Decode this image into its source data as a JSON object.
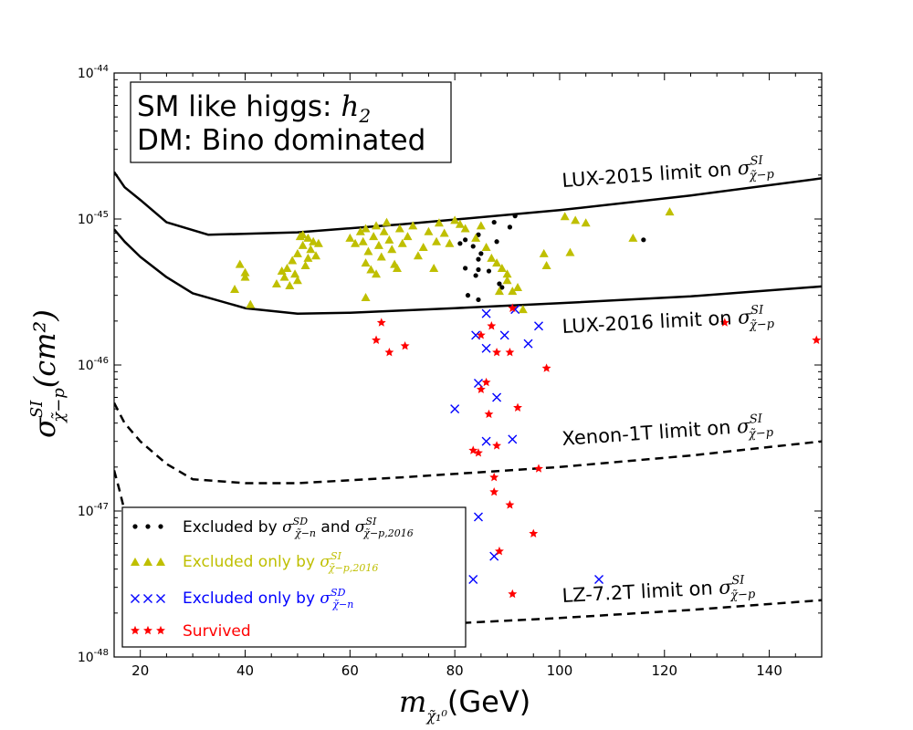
{
  "chart_data": {
    "type": "scatter",
    "xlabel_main": "m",
    "xlabel_sub": "χ̃₁⁰",
    "xlabel_unit": "(GeV)",
    "ylabel_main": "σ",
    "ylabel_sup": "SI",
    "ylabel_sub": "χ̃−p",
    "ylabel_unit": "(cm²)",
    "xlim": [
      15,
      150
    ],
    "ylim": [
      1e-48,
      1e-44
    ],
    "yscale": "log",
    "xticks": [
      "20",
      "40",
      "60",
      "80",
      "100",
      "120",
      "140"
    ],
    "yticks": [
      {
        "base": "10",
        "exp": "-44"
      },
      {
        "base": "10",
        "exp": "-45"
      },
      {
        "base": "10",
        "exp": "-46"
      },
      {
        "base": "10",
        "exp": "-47"
      },
      {
        "base": "10",
        "exp": "-48"
      }
    ],
    "textbox": {
      "line1_text": "SM like higgs: ",
      "line1_math": "h",
      "line1_math_sub": "2",
      "line2": "DM: Bino dominated"
    },
    "limit_curves": [
      {
        "label_text": "LUX-2015 limit on ",
        "label_math": "σ",
        "label_sup": "SI",
        "label_sub": "χ̃−p",
        "style": "solid",
        "points": [
          [
            15,
            2.1e-45
          ],
          [
            17,
            1.65e-45
          ],
          [
            20,
            1.35e-45
          ],
          [
            25,
            9.5e-46
          ],
          [
            33,
            7.8e-46
          ],
          [
            50,
            8.1e-46
          ],
          [
            70,
            9.2e-46
          ],
          [
            100,
            1.15e-45
          ],
          [
            125,
            1.45e-45
          ],
          [
            150,
            1.9e-45
          ]
        ]
      },
      {
        "label_text": "LUX-2016 limit on ",
        "label_math": "σ",
        "label_sup": "SI",
        "label_sub": "χ̃−p",
        "style": "solid",
        "points": [
          [
            15,
            8.5e-46
          ],
          [
            17,
            7e-46
          ],
          [
            20,
            5.5e-46
          ],
          [
            25,
            4e-46
          ],
          [
            30,
            3.1e-46
          ],
          [
            40,
            2.45e-46
          ],
          [
            50,
            2.25e-46
          ],
          [
            60,
            2.28e-46
          ],
          [
            80,
            2.45e-46
          ],
          [
            100,
            2.65e-46
          ],
          [
            125,
            2.95e-46
          ],
          [
            150,
            3.45e-46
          ]
        ]
      },
      {
        "label_text": "Xenon-1T limit on ",
        "label_math": "σ",
        "label_sup": "SI",
        "label_sub": "χ̃−p",
        "style": "dashed",
        "points": [
          [
            15,
            5.5e-47
          ],
          [
            17,
            4e-47
          ],
          [
            20,
            3e-47
          ],
          [
            25,
            2.1e-47
          ],
          [
            30,
            1.65e-47
          ],
          [
            40,
            1.55e-47
          ],
          [
            50,
            1.55e-47
          ],
          [
            70,
            1.7e-47
          ],
          [
            100,
            2e-47
          ],
          [
            125,
            2.4e-47
          ],
          [
            150,
            3e-47
          ]
        ]
      },
      {
        "label_text": "LZ-7.2T limit on ",
        "label_math": "σ",
        "label_sup": "SI",
        "label_sub": "χ̃−p",
        "style": "dashed",
        "points": [
          [
            15,
            1.9e-47
          ],
          [
            16,
            1.4e-47
          ],
          [
            17,
            1e-47
          ],
          [
            19,
            6e-48
          ],
          [
            21,
            3.8e-48
          ],
          [
            23,
            2.6e-48
          ],
          [
            26,
            1.9e-48
          ],
          [
            30,
            1.65e-48
          ],
          [
            40,
            1.55e-48
          ],
          [
            60,
            1.6e-48
          ],
          [
            80,
            1.7e-48
          ],
          [
            100,
            1.85e-48
          ],
          [
            125,
            2.1e-48
          ],
          [
            150,
            2.45e-48
          ]
        ]
      }
    ],
    "legend": {
      "placement": "lower-left",
      "entries": [
        {
          "text": "Excluded by ",
          "math1": "σ",
          "sup1": "SD",
          "sub1": "χ̃−n",
          "joiner": " and ",
          "math2": "σ",
          "sup2": "SI",
          "sub2": "χ̃−p,2016",
          "color": "#000000",
          "marker": "dot"
        },
        {
          "text": "Excluded only by ",
          "math1": "σ",
          "sup1": "SI",
          "sub1": "χ̃−p,2016",
          "color": "#bfbf00",
          "marker": "triangle"
        },
        {
          "text": "Excluded only by ",
          "math1": "σ",
          "sup1": "SD",
          "sub1": "χ̃−n",
          "color": "#0000ff",
          "marker": "x"
        },
        {
          "text": "Survived",
          "color": "#ff0000",
          "marker": "star"
        }
      ]
    },
    "series": [
      {
        "marker": "dot",
        "color": "#000000",
        "points": [
          [
            81,
            6.8e-46
          ],
          [
            82,
            7.2e-46
          ],
          [
            83.5,
            6.5e-46
          ],
          [
            84.5,
            7.8e-46
          ],
          [
            85,
            5.8e-46
          ],
          [
            84.5,
            5.3e-46
          ],
          [
            87.5,
            9.5e-46
          ],
          [
            88,
            7e-46
          ],
          [
            90.5,
            8.8e-46
          ],
          [
            91.5,
            1.05e-45
          ],
          [
            116,
            7.2e-46
          ],
          [
            82,
            4.6e-46
          ],
          [
            84.5,
            4.5e-46
          ],
          [
            84,
            4.1e-46
          ],
          [
            86.5,
            4.4e-46
          ],
          [
            88.5,
            3.6e-46
          ],
          [
            89,
            3.4e-46
          ],
          [
            82.5,
            3e-46
          ],
          [
            84.5,
            2.8e-46
          ]
        ]
      },
      {
        "marker": "triangle",
        "color": "#bfbf00",
        "points": [
          [
            38,
            3.3e-46
          ],
          [
            39,
            4.9e-46
          ],
          [
            40,
            4.3e-46
          ],
          [
            40,
            4e-46
          ],
          [
            41,
            2.6e-46
          ],
          [
            46,
            3.6e-46
          ],
          [
            47,
            4.4e-46
          ],
          [
            47.5,
            4e-46
          ],
          [
            48,
            4.6e-46
          ],
          [
            48.5,
            3.5e-46
          ],
          [
            49,
            5.2e-46
          ],
          [
            50,
            3.8e-46
          ],
          [
            50,
            5.8e-46
          ],
          [
            50.5,
            7.6e-46
          ],
          [
            51,
            6.6e-46
          ],
          [
            51.5,
            4.8e-46
          ],
          [
            52,
            7.4e-46
          ],
          [
            52.5,
            6.2e-46
          ],
          [
            53,
            7e-46
          ],
          [
            53.5,
            5.6e-46
          ],
          [
            54,
            6.8e-46
          ],
          [
            51,
            7.8e-46
          ],
          [
            52,
            5.4e-46
          ],
          [
            49.5,
            4.2e-46
          ],
          [
            62,
            8.2e-46
          ],
          [
            62.5,
            7e-46
          ],
          [
            63,
            8.6e-46
          ],
          [
            63.5,
            6e-46
          ],
          [
            63,
            5e-46
          ],
          [
            64,
            4.5e-46
          ],
          [
            64.5,
            7.6e-46
          ],
          [
            65,
            9e-46
          ],
          [
            65.5,
            6.6e-46
          ],
          [
            66,
            5.5e-46
          ],
          [
            66.5,
            8.2e-46
          ],
          [
            67,
            9.5e-46
          ],
          [
            67.5,
            7.2e-46
          ],
          [
            68,
            6.2e-46
          ],
          [
            68.5,
            4.9e-46
          ],
          [
            69,
            4.6e-46
          ],
          [
            69.5,
            8.6e-46
          ],
          [
            70,
            6.8e-46
          ],
          [
            71,
            7.6e-46
          ],
          [
            72,
            9e-46
          ],
          [
            73,
            5.6e-46
          ],
          [
            74,
            6.4e-46
          ],
          [
            75,
            8.2e-46
          ],
          [
            76,
            4.6e-46
          ],
          [
            76.5,
            7e-46
          ],
          [
            77,
            9.4e-46
          ],
          [
            78,
            8e-46
          ],
          [
            79,
            6.8e-46
          ],
          [
            80,
            9.8e-46
          ],
          [
            81,
            9.2e-46
          ],
          [
            82,
            8.6e-46
          ],
          [
            84,
            7.4e-46
          ],
          [
            85,
            9e-46
          ],
          [
            86,
            6.4e-46
          ],
          [
            87,
            5.4e-46
          ],
          [
            88,
            5e-46
          ],
          [
            89,
            4.6e-46
          ],
          [
            90,
            4.2e-46
          ],
          [
            91,
            3.2e-46
          ],
          [
            92,
            3.4e-46
          ],
          [
            93,
            2.4e-46
          ],
          [
            88.5,
            3.2e-46
          ],
          [
            90,
            3.8e-46
          ],
          [
            63,
            2.9e-46
          ],
          [
            65,
            4.2e-46
          ],
          [
            101,
            1.04e-45
          ],
          [
            103,
            9.8e-46
          ],
          [
            105,
            9.4e-46
          ],
          [
            114,
            7.4e-46
          ],
          [
            121,
            1.12e-45
          ],
          [
            97,
            5.8e-46
          ],
          [
            97.5,
            4.8e-46
          ],
          [
            102,
            5.9e-46
          ],
          [
            60,
            7.4e-46
          ],
          [
            61,
            6.8e-46
          ]
        ]
      },
      {
        "marker": "x",
        "color": "#0000ff",
        "points": [
          [
            91.5,
            2.4e-46
          ],
          [
            86,
            2.25e-46
          ],
          [
            96,
            1.85e-46
          ],
          [
            84,
            1.6e-46
          ],
          [
            89.5,
            1.6e-46
          ],
          [
            86,
            1.3e-46
          ],
          [
            94,
            1.4e-46
          ],
          [
            84.5,
            7.5e-47
          ],
          [
            88,
            6e-47
          ],
          [
            80,
            5e-47
          ],
          [
            86,
            3e-47
          ],
          [
            91,
            3.1e-47
          ],
          [
            84.5,
            9.1e-48
          ],
          [
            87.5,
            4.9e-48
          ],
          [
            83.5,
            3.4e-48
          ],
          [
            107.5,
            3.4e-48
          ]
        ]
      },
      {
        "marker": "star",
        "color": "#ff0000",
        "points": [
          [
            66,
            1.95e-46
          ],
          [
            65,
            1.48e-46
          ],
          [
            67.5,
            1.22e-46
          ],
          [
            70.5,
            1.35e-46
          ],
          [
            91,
            2.45e-46
          ],
          [
            87,
            1.85e-46
          ],
          [
            85,
            1.6e-46
          ],
          [
            88,
            1.22e-46
          ],
          [
            90.5,
            1.22e-46
          ],
          [
            97.5,
            9.5e-47
          ],
          [
            86,
            7.6e-47
          ],
          [
            85,
            6.8e-47
          ],
          [
            92,
            5.1e-47
          ],
          [
            86.5,
            4.6e-47
          ],
          [
            88,
            2.8e-47
          ],
          [
            83.5,
            2.6e-47
          ],
          [
            84.5,
            2.5e-47
          ],
          [
            96,
            1.95e-47
          ],
          [
            87.5,
            1.7e-47
          ],
          [
            87.5,
            1.35e-47
          ],
          [
            90.5,
            1.1e-47
          ],
          [
            95,
            7e-48
          ],
          [
            88.5,
            5.3e-48
          ],
          [
            91,
            2.7e-48
          ],
          [
            131.5,
            1.95e-46
          ],
          [
            149,
            1.48e-46
          ]
        ]
      }
    ]
  }
}
